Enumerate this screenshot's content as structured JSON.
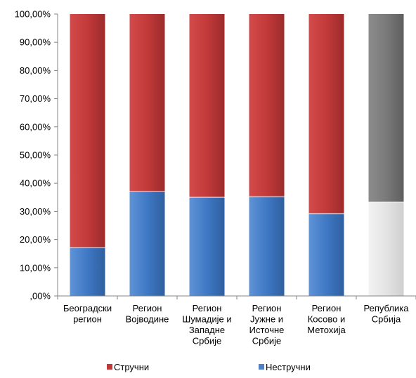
{
  "chart_data": {
    "type": "bar",
    "stacked": true,
    "percent_stacked": true,
    "categories": [
      [
        "Београдски",
        "регион"
      ],
      [
        "Регион",
        "Војводине"
      ],
      [
        "Регион",
        "Шумадије и",
        "Западне",
        "Србије"
      ],
      [
        "Регион",
        "Јужне и",
        "Источне",
        "Србије"
      ],
      [
        "Регион",
        "Косово и",
        "Метохија"
      ],
      [
        "Република",
        "Србија"
      ]
    ],
    "series": [
      {
        "name": "Нестручни",
        "color": "#4f81c7",
        "values": [
          17.2,
          37.0,
          35.0,
          35.2,
          29.2,
          33.3
        ]
      },
      {
        "name": "Стручни",
        "color": "#c0393a",
        "values": [
          82.8,
          63.0,
          65.0,
          64.8,
          70.8,
          66.7
        ]
      }
    ],
    "highlight": {
      "category_index": 5,
      "bottom_color": "#e3e3e3",
      "top_color": "#7f7f7f"
    },
    "ylim": [
      0,
      100
    ],
    "yticks": [
      "100,00%",
      "90,00%",
      "80,00%",
      "70,00%",
      "60,00%",
      "50,00%",
      "40,00%",
      "30,00%",
      "20,00%",
      "10,00%",
      ",00%"
    ],
    "grid": false,
    "legend_position": "bottom",
    "legend": [
      {
        "label": "Стручни",
        "color": "#c0393a"
      },
      {
        "label": "Нестручни",
        "color": "#4f81c7"
      }
    ]
  }
}
